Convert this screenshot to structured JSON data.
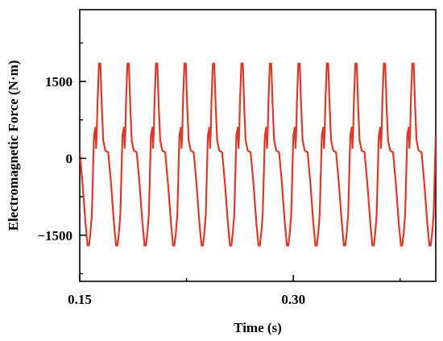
{
  "chart_data": {
    "type": "line",
    "title": "",
    "xlabel": "Time (s)",
    "ylabel": "Electromagnetic Force (N·m)",
    "xlim": [
      0.15,
      0.4
    ],
    "ylim": [
      -2400,
      2900
    ],
    "x_ticks": [
      0.15,
      0.3
    ],
    "x_tick_labels": [
      "0.15",
      "0.30"
    ],
    "x_minor_ticks": [
      0.225,
      0.375
    ],
    "y_ticks": [
      1500,
      0,
      -1500
    ],
    "y_tick_labels": [
      "1500",
      "0",
      "−1500"
    ],
    "y_minor_ticks": [
      2250,
      750,
      -750,
      -2250
    ],
    "grid": false,
    "legend": "none",
    "series": [
      {
        "color": "#d93a2a",
        "period": 0.02,
        "x_start": 0.15,
        "x_end": 0.4,
        "waveform_one_period": {
          "x": [
            0.0,
            0.002,
            0.004,
            0.0055,
            0.0065,
            0.0075,
            0.0085,
            0.01,
            0.011,
            0.0115,
            0.012,
            0.0125,
            0.0135,
            0.0145,
            0.0155,
            0.0165,
            0.018,
            0.02
          ],
          "y": [
            120,
            -500,
            -1250,
            -1700,
            -1700,
            -1450,
            -1100,
            450,
            600,
            200,
            500,
            1100,
            1850,
            1850,
            1000,
            350,
            150,
            120
          ]
        }
      }
    ]
  }
}
